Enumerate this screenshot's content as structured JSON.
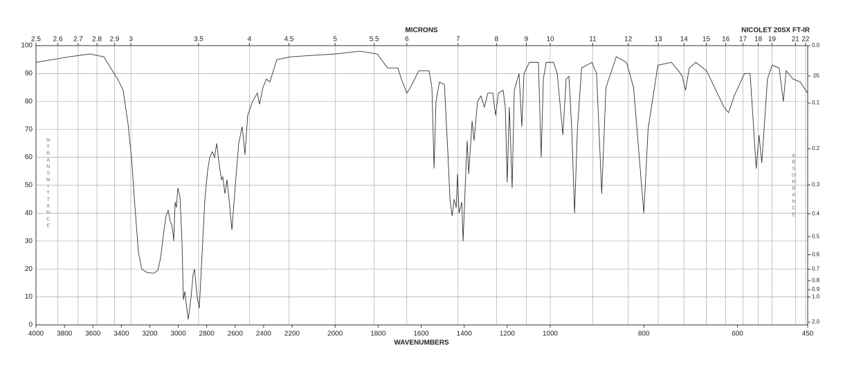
{
  "chart_data": {
    "type": "line",
    "title": "NICOLET 20SX FT-IR",
    "x2_label": "MICRONS",
    "x_label": "WAVENUMBERS",
    "y_label": "%TRANSMITTANCE",
    "y2_label": "ABSORBANCE",
    "color": "#333333",
    "grid": true,
    "xlim": [
      4000,
      450
    ],
    "ylim": [
      0,
      100
    ],
    "xticks": [
      4000,
      3800,
      3600,
      3400,
      3200,
      3000,
      2800,
      2600,
      2400,
      2200,
      2000,
      1800,
      1600,
      1400,
      1200,
      1000,
      800,
      600,
      450
    ],
    "yticks": [
      0,
      10,
      20,
      30,
      40,
      50,
      60,
      70,
      80,
      90,
      100
    ],
    "x2ticks": [
      2.5,
      2.6,
      2.7,
      2.8,
      2.9,
      3,
      3.5,
      4,
      4.5,
      5,
      5.5,
      6,
      7,
      8,
      9,
      10,
      11,
      12,
      13,
      14,
      15,
      16,
      17,
      18,
      19,
      21,
      22
    ],
    "y2ticks": [
      {
        "value": 0,
        "label": "0.0"
      },
      {
        "value": 0.05,
        "label": ".05"
      },
      {
        "value": 0.1,
        "label": "0.1"
      },
      {
        "value": 0.2,
        "label": "0.2"
      },
      {
        "value": 0.3,
        "label": "0.3"
      },
      {
        "value": 0.4,
        "label": "0.4"
      },
      {
        "value": 0.5,
        "label": "0.5"
      },
      {
        "value": 0.6,
        "label": "0.6"
      },
      {
        "value": 0.7,
        "label": "0.7"
      },
      {
        "value": 0.8,
        "label": "0.8"
      },
      {
        "value": 0.9,
        "label": "0.9"
      },
      {
        "value": 1,
        "label": "1.0"
      },
      {
        "value": 2,
        "label": "2.0"
      }
    ],
    "x": [
      4000,
      3767,
      3621,
      3523,
      3475,
      3426,
      3387,
      3353,
      3329,
      3304,
      3280,
      3256,
      3222,
      3173,
      3144,
      3124,
      3105,
      3086,
      3071,
      3056,
      3047,
      3037,
      3032,
      3022,
      3013,
      3003,
      2988,
      2974,
      2964,
      2954,
      2945,
      2930,
      2910,
      2896,
      2886,
      2867,
      2852,
      2833,
      2813,
      2794,
      2779,
      2760,
      2745,
      2730,
      2711,
      2696,
      2687,
      2672,
      2658,
      2643,
      2623,
      2599,
      2575,
      2551,
      2531,
      2512,
      2478,
      2444,
      2429,
      2405,
      2380,
      2356,
      2307,
      2210,
      2110,
      2000,
      1885,
      1804,
      1756,
      1708,
      1692,
      1666,
      1643,
      1611,
      1563,
      1550,
      1540,
      1531,
      1515,
      1492,
      1476,
      1466,
      1456,
      1447,
      1437,
      1431,
      1424,
      1411,
      1405,
      1395,
      1386,
      1379,
      1363,
      1354,
      1338,
      1322,
      1306,
      1290,
      1267,
      1254,
      1241,
      1219,
      1209,
      1200,
      1190,
      1177,
      1167,
      1145,
      1132,
      1122,
      1097,
      1055,
      1042,
      1032,
      1019,
      993,
      985,
      973,
      966,
      960,
      954,
      948,
      942,
      933,
      911,
      901,
      890,
      881,
      859,
      837,
      822,
      800,
      791,
      770,
      741,
      726,
      718,
      711,
      703,
      689,
      666,
      629,
      619,
      607,
      585,
      573,
      560,
      554,
      548,
      536,
      526,
      511,
      502,
      496,
      481,
      466,
      450
    ],
    "values": [
      94,
      96,
      97,
      96,
      92,
      88,
      84,
      72,
      60,
      42,
      26,
      20,
      18.8,
      18.5,
      19.5,
      24,
      32,
      39,
      41,
      37,
      36,
      33,
      30,
      44,
      42,
      49,
      46,
      30,
      9,
      12,
      8,
      2,
      10,
      18,
      20,
      10,
      6,
      25,
      45,
      55,
      60,
      62,
      60,
      65,
      57,
      52,
      53,
      47,
      52,
      45,
      34,
      50,
      65,
      71,
      61,
      75,
      80,
      83,
      79,
      85,
      88,
      87,
      95,
      96,
      96.5,
      97,
      98,
      97,
      92,
      92,
      88,
      83,
      86,
      91,
      91,
      85,
      56,
      80,
      87,
      86,
      62,
      45,
      39,
      45,
      42,
      54,
      40,
      44,
      30,
      50,
      66,
      54,
      73,
      66,
      80,
      82,
      78,
      83,
      83,
      75,
      83,
      84,
      78,
      51,
      78,
      49,
      84,
      90,
      71,
      90,
      94,
      94,
      60,
      88,
      94,
      94,
      90,
      68,
      88,
      89,
      70,
      40,
      70,
      92,
      94,
      90,
      47,
      85,
      96,
      94,
      85,
      40,
      70,
      93,
      94,
      91,
      89,
      84,
      92,
      94,
      91,
      78,
      76,
      82,
      90,
      90,
      56,
      68,
      58,
      88,
      93,
      92,
      80,
      91,
      88,
      87,
      83
    ]
  }
}
